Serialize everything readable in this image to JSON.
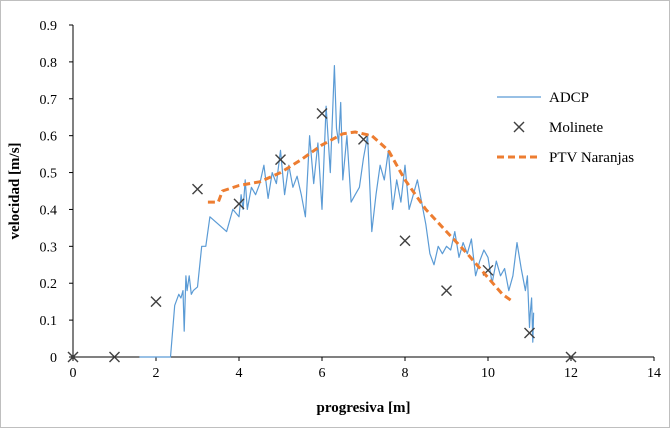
{
  "chart_data": {
    "type": "line",
    "title": "",
    "xlabel": "progresiva  [m]",
    "ylabel": "velocidad  [m/s]",
    "xlim": [
      0,
      14
    ],
    "ylim": [
      0,
      0.9
    ],
    "xticks": [
      0,
      2,
      4,
      6,
      8,
      10,
      12,
      14
    ],
    "yticks": [
      0,
      0.1,
      0.2,
      0.3,
      0.4,
      0.5,
      0.6,
      0.7,
      0.8,
      0.9
    ],
    "grid": false,
    "legend_position": "right",
    "series": [
      {
        "name": "ADCP",
        "style": "line",
        "color": "#5b9bd5",
        "x": [
          1.6,
          2.35,
          2.45,
          2.55,
          2.6,
          2.65,
          2.68,
          2.72,
          2.75,
          2.8,
          2.85,
          2.9,
          3.0,
          3.1,
          3.2,
          3.3,
          3.5,
          3.7,
          3.85,
          4.0,
          4.05,
          4.1,
          4.15,
          4.2,
          4.3,
          4.4,
          4.5,
          4.6,
          4.7,
          4.8,
          4.9,
          5.0,
          5.1,
          5.2,
          5.3,
          5.4,
          5.5,
          5.6,
          5.7,
          5.8,
          5.9,
          6.0,
          6.1,
          6.2,
          6.3,
          6.35,
          6.4,
          6.45,
          6.5,
          6.6,
          6.7,
          6.8,
          6.9,
          7.0,
          7.1,
          7.2,
          7.3,
          7.4,
          7.5,
          7.6,
          7.7,
          7.8,
          7.9,
          8.0,
          8.1,
          8.2,
          8.3,
          8.4,
          8.5,
          8.6,
          8.7,
          8.8,
          8.9,
          9.0,
          9.1,
          9.2,
          9.3,
          9.4,
          9.5,
          9.6,
          9.7,
          9.8,
          9.9,
          10.0,
          10.1,
          10.2,
          10.3,
          10.4,
          10.5,
          10.6,
          10.7,
          10.8,
          10.9,
          10.95,
          11.0,
          11.02,
          11.05,
          11.08,
          11.1
        ],
        "y": [
          0.0,
          0.0,
          0.14,
          0.17,
          0.16,
          0.18,
          0.07,
          0.22,
          0.18,
          0.22,
          0.17,
          0.18,
          0.19,
          0.3,
          0.3,
          0.38,
          0.36,
          0.34,
          0.4,
          0.38,
          0.44,
          0.4,
          0.48,
          0.4,
          0.46,
          0.44,
          0.47,
          0.52,
          0.43,
          0.5,
          0.47,
          0.56,
          0.44,
          0.52,
          0.46,
          0.49,
          0.44,
          0.38,
          0.6,
          0.47,
          0.58,
          0.4,
          0.68,
          0.5,
          0.79,
          0.62,
          0.58,
          0.69,
          0.48,
          0.6,
          0.42,
          0.44,
          0.46,
          0.54,
          0.6,
          0.34,
          0.44,
          0.52,
          0.48,
          0.56,
          0.4,
          0.48,
          0.42,
          0.52,
          0.4,
          0.44,
          0.48,
          0.42,
          0.36,
          0.28,
          0.25,
          0.3,
          0.28,
          0.3,
          0.29,
          0.34,
          0.27,
          0.31,
          0.28,
          0.32,
          0.22,
          0.26,
          0.29,
          0.27,
          0.2,
          0.26,
          0.22,
          0.24,
          0.18,
          0.22,
          0.31,
          0.24,
          0.18,
          0.22,
          0.08,
          0.12,
          0.16,
          0.04,
          0.12
        ]
      },
      {
        "name": "Molinete",
        "style": "markers",
        "color": "#404040",
        "x": [
          0,
          1,
          2,
          3,
          4,
          5,
          6,
          7,
          8,
          9,
          10,
          11,
          12
        ],
        "y": [
          0,
          0,
          0.15,
          0.455,
          0.415,
          0.535,
          0.66,
          0.59,
          0.315,
          0.18,
          0.235,
          0.065,
          0
        ]
      },
      {
        "name": "PTV Naranjas",
        "style": "dashed",
        "color": "#ed7d31",
        "x": [
          3.25,
          3.5,
          3.6,
          4.0,
          4.5,
          5.0,
          5.5,
          6.0,
          6.5,
          6.8,
          7.2,
          7.6,
          8.0,
          8.5,
          9.0,
          9.5,
          10.0,
          10.35,
          10.6
        ],
        "y": [
          0.42,
          0.42,
          0.45,
          0.465,
          0.475,
          0.5,
          0.535,
          0.575,
          0.605,
          0.61,
          0.6,
          0.56,
          0.48,
          0.4,
          0.34,
          0.28,
          0.215,
          0.17,
          0.15
        ]
      }
    ]
  }
}
